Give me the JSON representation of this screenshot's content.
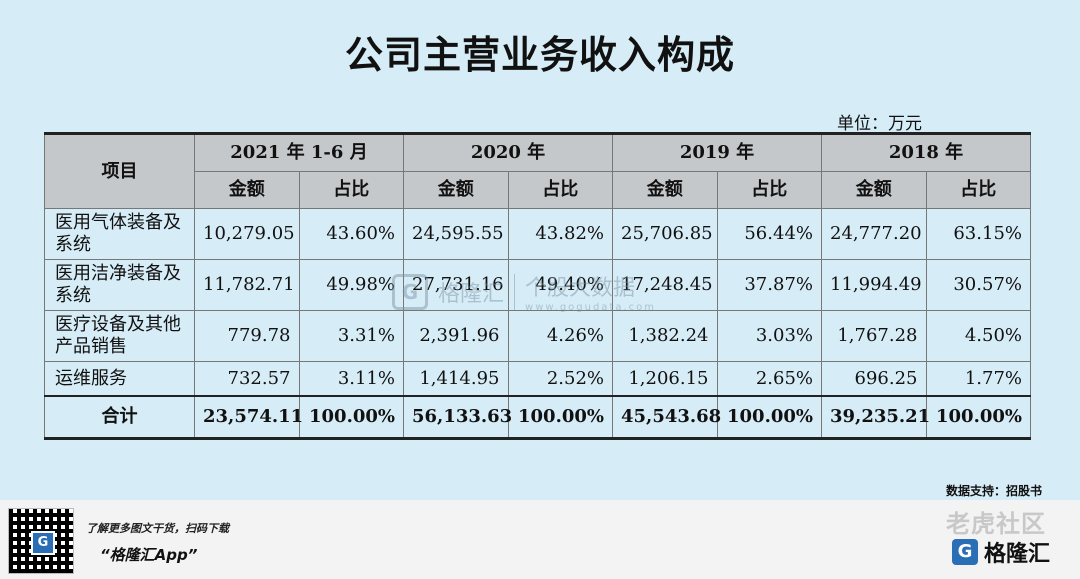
{
  "title": "公司主营业务收入构成",
  "unit_label": "单位：万元",
  "table": {
    "item_header": "项目",
    "periods": [
      "2021 年 1-6 月",
      "2020 年",
      "2019 年",
      "2018 年"
    ],
    "sub_headers": {
      "amount": "金额",
      "share": "占比"
    },
    "rows": [
      {
        "item": "医用气体装备及系统",
        "cells": [
          "10,279.05",
          "43.60%",
          "24,595.55",
          "43.82%",
          "25,706.85",
          "56.44%",
          "24,777.20",
          "63.15%"
        ]
      },
      {
        "item": "医用洁净装备及系统",
        "cells": [
          "11,782.71",
          "49.98%",
          "27,731.16",
          "49.40%",
          "17,248.45",
          "37.87%",
          "11,994.49",
          "30.57%"
        ]
      },
      {
        "item": "医疗设备及其他产品销售",
        "cells": [
          "779.78",
          "3.31%",
          "2,391.96",
          "4.26%",
          "1,382.24",
          "3.03%",
          "1,767.28",
          "4.50%"
        ]
      },
      {
        "item": "运维服务",
        "cells": [
          "732.57",
          "3.11%",
          "1,414.95",
          "2.52%",
          "1,206.15",
          "2.65%",
          "696.25",
          "1.77%"
        ]
      }
    ],
    "total": {
      "item": "合计",
      "cells": [
        "23,574.11",
        "100.00%",
        "56,133.63",
        "100.00%",
        "45,543.68",
        "100.00%",
        "39,235.21",
        "100.00%"
      ]
    }
  },
  "source": "数据支持：招股书",
  "watermark": {
    "brand": "格隆汇",
    "text": "个股大数据",
    "url": "www.gogudata.com"
  },
  "footer": {
    "promo_line1": "了解更多图文干货，扫码下载",
    "promo_line2": "“格隆汇App”",
    "qr_badge": "G",
    "tiger_watermark": "老虎社区",
    "brand_name": "格隆汇",
    "brand_logo": "G"
  }
}
